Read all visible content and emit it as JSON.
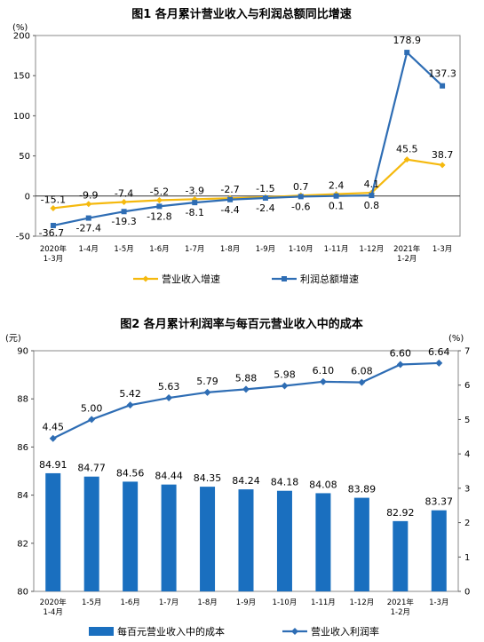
{
  "chart_data": [
    {
      "type": "line",
      "title": "图1  各月累计营业收入与利润总额同比增速",
      "ylabel": "(%)",
      "ylim": [
        -50,
        200
      ],
      "yticks": [
        -50,
        0,
        50,
        100,
        150,
        200
      ],
      "categories": [
        "2020年\n1-3月",
        "1-4月",
        "1-5月",
        "1-6月",
        "1-7月",
        "1-8月",
        "1-9月",
        "1-10月",
        "1-11月",
        "1-12月",
        "2021年\n1-2月",
        "1-3月"
      ],
      "series": [
        {
          "name": "营业收入增速",
          "color": "#f5b90e",
          "values": [
            -15.1,
            -9.9,
            -7.4,
            -5.2,
            -3.9,
            -2.7,
            -1.5,
            0.7,
            2.4,
            4.1,
            45.5,
            38.7
          ],
          "labels": [
            "-15.1",
            "-9.9",
            "-7.4",
            "-5.2",
            "-3.9",
            "-2.7",
            "-1.5",
            "0.7",
            "2.4",
            "4.1",
            "45.5",
            "38.7"
          ]
        },
        {
          "name": "利润总额增速",
          "color": "#2e6db4",
          "values": [
            -36.7,
            -27.4,
            -19.3,
            -12.8,
            -8.1,
            -4.4,
            -2.4,
            -0.6,
            0.1,
            0.8,
            178.9,
            137.3
          ],
          "labels": [
            "-36.7",
            "-27.4",
            "-19.3",
            "-12.8",
            "-8.1",
            "-4.4",
            "-2.4",
            "-0.6",
            "0.1",
            "0.8",
            "178.9",
            "137.3"
          ]
        }
      ],
      "legend": "bottom"
    },
    {
      "type": "bar",
      "title": "图2  各月累计利润率与每百元营业收入中的成本",
      "ylabel": "(元)",
      "ylabel_right": "(%)",
      "ylim": [
        80,
        90
      ],
      "yticks": [
        80,
        82,
        84,
        86,
        88,
        90
      ],
      "ylim_right": [
        0,
        7
      ],
      "yticks_right": [
        0,
        1,
        2,
        3,
        4,
        5,
        6,
        7
      ],
      "categories": [
        "2020年\n1-4月",
        "1-5月",
        "1-6月",
        "1-7月",
        "1-8月",
        "1-9月",
        "1-10月",
        "1-11月",
        "1-12月",
        "2021年\n1-2月",
        "1-3月"
      ],
      "series": [
        {
          "name": "每百元营业收入中的成本",
          "kind": "bar",
          "axis": "left",
          "color": "#1a6fbf",
          "values": [
            84.91,
            84.77,
            84.56,
            84.44,
            84.35,
            84.24,
            84.18,
            84.08,
            83.89,
            82.92,
            83.37
          ],
          "labels": [
            "84.91",
            "84.77",
            "84.56",
            "84.44",
            "84.35",
            "84.24",
            "84.18",
            "84.08",
            "83.89",
            "82.92",
            "83.37"
          ]
        },
        {
          "name": "营业收入利润率",
          "kind": "line",
          "axis": "right",
          "color": "#2e6db4",
          "values": [
            4.45,
            5.0,
            5.42,
            5.63,
            5.79,
            5.88,
            5.98,
            6.1,
            6.08,
            6.6,
            6.64
          ],
          "labels": [
            "4.45",
            "5.00",
            "5.42",
            "5.63",
            "5.79",
            "5.88",
            "5.98",
            "6.10",
            "6.08",
            "6.60",
            "6.64"
          ]
        }
      ],
      "legend": "bottom"
    }
  ]
}
